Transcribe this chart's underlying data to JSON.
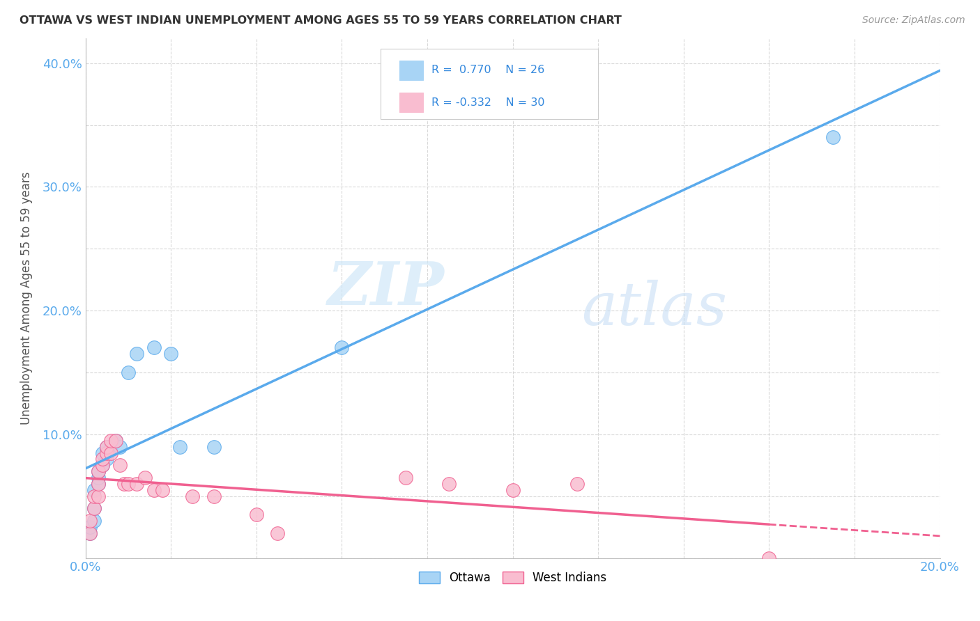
{
  "title": "OTTAWA VS WEST INDIAN UNEMPLOYMENT AMONG AGES 55 TO 59 YEARS CORRELATION CHART",
  "source": "Source: ZipAtlas.com",
  "ylabel": "Unemployment Among Ages 55 to 59 years",
  "xlim": [
    0.0,
    0.2
  ],
  "ylim": [
    0.0,
    0.42
  ],
  "x_ticks": [
    0.0,
    0.02,
    0.04,
    0.06,
    0.08,
    0.1,
    0.12,
    0.14,
    0.16,
    0.18,
    0.2
  ],
  "x_tick_labels": [
    "0.0%",
    "",
    "",
    "",
    "",
    "",
    "",
    "",
    "",
    "",
    "20.0%"
  ],
  "y_ticks": [
    0.0,
    0.05,
    0.1,
    0.15,
    0.2,
    0.25,
    0.3,
    0.35,
    0.4
  ],
  "y_tick_labels": [
    "",
    "",
    "10.0%",
    "",
    "20.0%",
    "",
    "30.0%",
    "",
    "40.0%"
  ],
  "ottawa_color": "#a8d4f5",
  "west_indian_color": "#f9bdd0",
  "ottawa_line_color": "#5aaaec",
  "west_indian_line_color": "#f06090",
  "background_color": "#ffffff",
  "watermark_zip": "ZIP",
  "watermark_atlas": "atlas",
  "ottawa_x": [
    0.001,
    0.001,
    0.002,
    0.002,
    0.002,
    0.003,
    0.003,
    0.003,
    0.004,
    0.004,
    0.005,
    0.005,
    0.006,
    0.007,
    0.008,
    0.01,
    0.012,
    0.016,
    0.02,
    0.022,
    0.03,
    0.06,
    0.175
  ],
  "ottawa_y": [
    0.02,
    0.025,
    0.03,
    0.04,
    0.055,
    0.06,
    0.065,
    0.07,
    0.075,
    0.085,
    0.08,
    0.09,
    0.09,
    0.095,
    0.09,
    0.15,
    0.165,
    0.17,
    0.165,
    0.09,
    0.09,
    0.17,
    0.34
  ],
  "west_x": [
    0.001,
    0.001,
    0.002,
    0.002,
    0.003,
    0.003,
    0.003,
    0.004,
    0.004,
    0.005,
    0.005,
    0.006,
    0.006,
    0.007,
    0.008,
    0.009,
    0.01,
    0.012,
    0.014,
    0.016,
    0.018,
    0.025,
    0.03,
    0.04,
    0.045,
    0.075,
    0.085,
    0.1,
    0.115,
    0.16
  ],
  "west_y": [
    0.02,
    0.03,
    0.04,
    0.05,
    0.05,
    0.06,
    0.07,
    0.075,
    0.08,
    0.085,
    0.09,
    0.085,
    0.095,
    0.095,
    0.075,
    0.06,
    0.06,
    0.06,
    0.065,
    0.055,
    0.055,
    0.05,
    0.05,
    0.035,
    0.02,
    0.065,
    0.06,
    0.055,
    0.06,
    0.0
  ]
}
